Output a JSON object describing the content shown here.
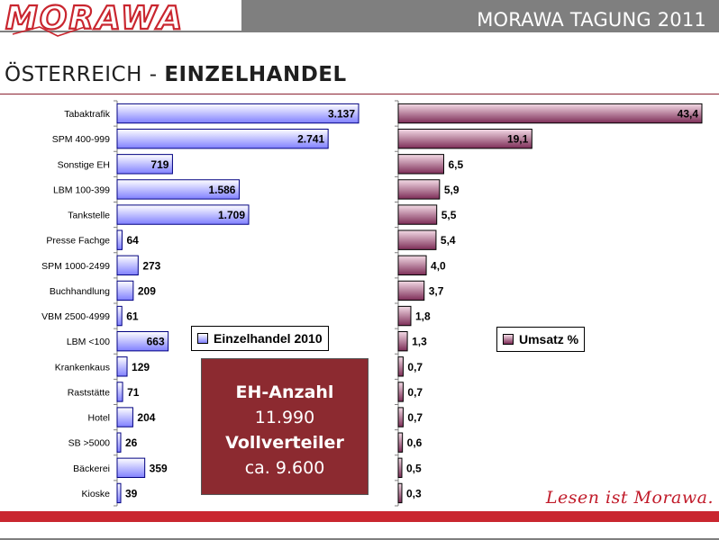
{
  "header": {
    "brand": "MORAWA",
    "event_title": "MORAWA TAGUNG 2011"
  },
  "page": {
    "title_part1": "ÖSTERREICH - ",
    "title_part2": "EINZELHANDEL"
  },
  "info_box": {
    "line1": "EH-Anzahl",
    "line2": "11.990",
    "line3": "Vollverteiler",
    "line4": "ca. 9.600"
  },
  "slogan": "Lesen ist Morawa.",
  "colors": {
    "brand_red": "#c9262f",
    "info_box_bg": "#8c2a30",
    "bar_left": "#8080ff",
    "bar_right": "#7d2d57",
    "header_gray": "#7f7f7f"
  },
  "chart_data": [
    {
      "type": "bar",
      "orientation": "horizontal",
      "categories": [
        "Tabaktrafik",
        "SPM 400-999",
        "Sonstige EH",
        "LBM 100-399",
        "Tankstelle",
        "Presse Fachge",
        "SPM 1000-2499",
        "Buchhandlung",
        "VBM 2500-4999",
        "LBM <100",
        "Krankenkaus",
        "Raststätte",
        "Hotel",
        "SB >5000",
        "Bäckerei",
        "Kioske"
      ],
      "series": [
        {
          "name": "Einzelhandel 2010",
          "values": [
            3137,
            2741,
            719,
            1586,
            1709,
            64,
            273,
            209,
            61,
            663,
            129,
            71,
            204,
            26,
            359,
            39
          ],
          "labels": [
            "3.137",
            "2.741",
            "719",
            "1.586",
            "1.709",
            "64",
            "273",
            "209",
            "61",
            "663",
            "129",
            "71",
            "204",
            "26",
            "359",
            "39"
          ]
        }
      ],
      "xlim": [
        0,
        3137
      ],
      "legend": "bottom-center"
    },
    {
      "type": "bar",
      "orientation": "horizontal",
      "categories": [
        "Tabaktrafik",
        "SPM 400-999",
        "Sonstige EH",
        "LBM 100-399",
        "Tankstelle",
        "Presse Fachge",
        "SPM 1000-2499",
        "Buchhandlung",
        "VBM 2500-4999",
        "LBM <100",
        "Krankenkaus",
        "Raststätte",
        "Hotel",
        "SB >5000",
        "Bäckerei",
        "Kioske"
      ],
      "series": [
        {
          "name": "Umsatz %",
          "values": [
            43.4,
            19.1,
            6.5,
            5.9,
            5.5,
            5.4,
            4.0,
            3.7,
            1.8,
            1.3,
            0.7,
            0.7,
            0.7,
            0.6,
            0.5,
            0.3
          ],
          "labels": [
            "43,4",
            "19,1",
            "6,5",
            "5,9",
            "5,5",
            "5,4",
            "4,0",
            "3,7",
            "1,8",
            "1,3",
            "0,7",
            "0,7",
            "0,7",
            "0,6",
            "0,5",
            "0,3"
          ]
        }
      ],
      "xlim": [
        0,
        43.4
      ],
      "legend": "right"
    }
  ]
}
